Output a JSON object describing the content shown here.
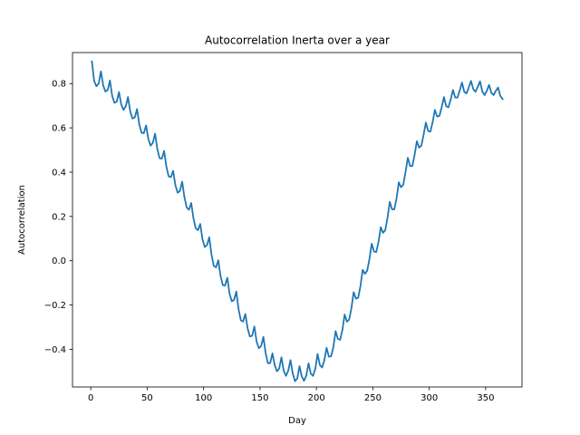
{
  "chart_data": {
    "type": "line",
    "title": "Autocorrelation Inerta over a year",
    "xlabel": "Day",
    "ylabel": "Autocorrelation",
    "xlim": [
      -16.2,
      382.2
    ],
    "ylim": [
      -0.57,
      0.94
    ],
    "xticks": [
      0,
      50,
      100,
      150,
      200,
      250,
      300,
      350
    ],
    "xtick_labels": [
      "0",
      "50",
      "100",
      "150",
      "200",
      "250",
      "300",
      "350"
    ],
    "yticks": [
      -0.4,
      -0.2,
      0.0,
      0.2,
      0.4,
      0.6,
      0.8
    ],
    "ytick_labels": [
      "−0.4",
      "−0.2",
      "0.0",
      "0.2",
      "0.4",
      "0.6",
      "0.8"
    ],
    "grid": false,
    "series": [
      {
        "color": "#1f77b4",
        "x": [
          1,
          3,
          5,
          7,
          9,
          11,
          13,
          15,
          17,
          19,
          21,
          23,
          25,
          27,
          29,
          31,
          33,
          35,
          37,
          39,
          41,
          43,
          45,
          47,
          49,
          51,
          53,
          55,
          57,
          59,
          61,
          63,
          65,
          67,
          69,
          71,
          73,
          75,
          77,
          79,
          81,
          83,
          85,
          87,
          89,
          91,
          93,
          95,
          97,
          99,
          101,
          103,
          105,
          107,
          109,
          111,
          113,
          115,
          117,
          119,
          121,
          123,
          125,
          127,
          129,
          131,
          133,
          135,
          137,
          139,
          141,
          143,
          145,
          147,
          149,
          151,
          153,
          155,
          157,
          159,
          161,
          163,
          165,
          167,
          169,
          171,
          173,
          175,
          177,
          179,
          181,
          183,
          185,
          187,
          189,
          191,
          193,
          195,
          197,
          199,
          201,
          203,
          205,
          207,
          209,
          211,
          213,
          215,
          217,
          219,
          221,
          223,
          225,
          227,
          229,
          231,
          233,
          235,
          237,
          239,
          241,
          243,
          245,
          247,
          249,
          251,
          253,
          255,
          257,
          259,
          261,
          263,
          265,
          267,
          269,
          271,
          273,
          275,
          277,
          279,
          281,
          283,
          285,
          287,
          289,
          291,
          293,
          295,
          297,
          299,
          301,
          303,
          305,
          307,
          309,
          311,
          313,
          315,
          317,
          319,
          321,
          323,
          325,
          327,
          329,
          331,
          333,
          335,
          337,
          339,
          341,
          343,
          345,
          347,
          349,
          351,
          353,
          355,
          357,
          359,
          361,
          363,
          365
        ],
        "y": [
          0.9,
          0.811,
          0.788,
          0.8,
          0.855,
          0.792,
          0.764,
          0.771,
          0.814,
          0.744,
          0.713,
          0.718,
          0.762,
          0.706,
          0.681,
          0.697,
          0.739,
          0.674,
          0.642,
          0.647,
          0.685,
          0.615,
          0.578,
          0.576,
          0.611,
          0.55,
          0.52,
          0.532,
          0.574,
          0.504,
          0.463,
          0.461,
          0.496,
          0.425,
          0.381,
          0.377,
          0.406,
          0.341,
          0.307,
          0.315,
          0.357,
          0.287,
          0.241,
          0.23,
          0.261,
          0.192,
          0.147,
          0.138,
          0.166,
          0.097,
          0.062,
          0.07,
          0.106,
          0.028,
          -0.023,
          -0.03,
          0.002,
          -0.068,
          -0.11,
          -0.112,
          -0.077,
          -0.149,
          -0.183,
          -0.177,
          -0.139,
          -0.219,
          -0.269,
          -0.275,
          -0.241,
          -0.305,
          -0.342,
          -0.339,
          -0.297,
          -0.366,
          -0.395,
          -0.385,
          -0.344,
          -0.418,
          -0.463,
          -0.462,
          -0.418,
          -0.471,
          -0.499,
          -0.487,
          -0.436,
          -0.497,
          -0.52,
          -0.497,
          -0.449,
          -0.509,
          -0.544,
          -0.532,
          -0.476,
          -0.522,
          -0.542,
          -0.519,
          -0.463,
          -0.51,
          -0.52,
          -0.488,
          -0.421,
          -0.47,
          -0.482,
          -0.45,
          -0.393,
          -0.433,
          -0.432,
          -0.39,
          -0.318,
          -0.353,
          -0.357,
          -0.313,
          -0.243,
          -0.275,
          -0.266,
          -0.215,
          -0.142,
          -0.171,
          -0.167,
          -0.115,
          -0.041,
          -0.059,
          -0.045,
          0.008,
          0.077,
          0.042,
          0.039,
          0.084,
          0.151,
          0.126,
          0.138,
          0.194,
          0.266,
          0.232,
          0.232,
          0.281,
          0.354,
          0.332,
          0.344,
          0.401,
          0.465,
          0.428,
          0.427,
          0.478,
          0.54,
          0.511,
          0.52,
          0.569,
          0.624,
          0.586,
          0.583,
          0.626,
          0.681,
          0.651,
          0.654,
          0.693,
          0.739,
          0.698,
          0.693,
          0.728,
          0.771,
          0.737,
          0.737,
          0.768,
          0.805,
          0.763,
          0.755,
          0.782,
          0.812,
          0.775,
          0.763,
          0.785,
          0.81,
          0.765,
          0.748,
          0.767,
          0.794,
          0.759,
          0.748,
          0.767,
          0.782,
          0.744,
          0.73
        ]
      }
    ]
  }
}
